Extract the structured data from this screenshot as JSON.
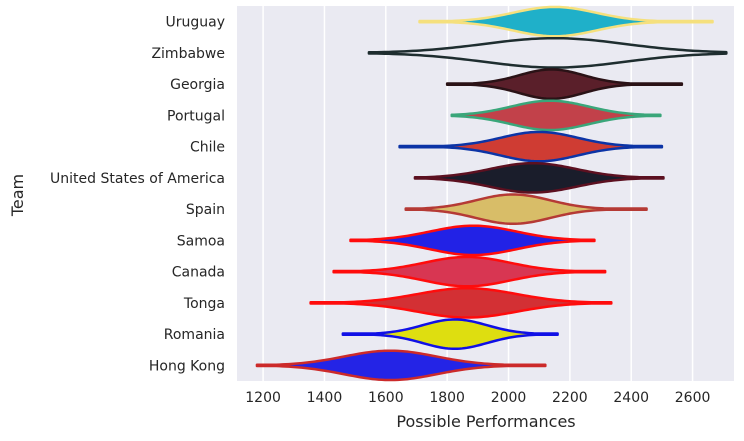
{
  "chart_data": {
    "type": "violin",
    "orientation": "horizontal",
    "xlabel": "Possible Performances",
    "ylabel": "Team",
    "xlim": [
      1115,
      2735
    ],
    "xticks": [
      1200,
      1400,
      1600,
      1800,
      2000,
      2200,
      2400,
      2600
    ],
    "grid": true,
    "background": "#eaeaf2",
    "series": [
      {
        "category": "Uruguay",
        "min": 1710,
        "max": 2665,
        "center": 2150,
        "spread": 135,
        "fill": "#1fb0c9",
        "edge": "#f5e07d"
      },
      {
        "category": "Zimbabwe",
        "min": 1545,
        "max": 2710,
        "center": 2150,
        "spread": 230,
        "fill": "#eaeaf2",
        "edge": "#1e2d2f"
      },
      {
        "category": "Georgia",
        "min": 1800,
        "max": 2565,
        "center": 2140,
        "spread": 105,
        "fill": "#5a1f2a",
        "edge": "#2a1216"
      },
      {
        "category": "Portugal",
        "min": 1815,
        "max": 2495,
        "center": 2135,
        "spread": 125,
        "fill": "#c2414a",
        "edge": "#3aa67a"
      },
      {
        "category": "Chile",
        "min": 1645,
        "max": 2500,
        "center": 2100,
        "spread": 125,
        "fill": "#cf3c33",
        "edge": "#0c34a6"
      },
      {
        "category": "United States of America",
        "min": 1695,
        "max": 2505,
        "center": 2080,
        "spread": 140,
        "fill": "#1a1d2b",
        "edge": "#5c1020"
      },
      {
        "category": "Spain",
        "min": 1665,
        "max": 2450,
        "center": 2015,
        "spread": 120,
        "fill": "#d8bd68",
        "edge": "#b53a35"
      },
      {
        "category": "Samoa",
        "min": 1485,
        "max": 2280,
        "center": 1885,
        "spread": 140,
        "fill": "#2222e6",
        "edge": "#ff0c0c"
      },
      {
        "category": "Canada",
        "min": 1430,
        "max": 2315,
        "center": 1865,
        "spread": 140,
        "fill": "#d83652",
        "edge": "#ff0c0c"
      },
      {
        "category": "Tonga",
        "min": 1355,
        "max": 2335,
        "center": 1865,
        "spread": 160,
        "fill": "#d33034",
        "edge": "#ff0c0c"
      },
      {
        "category": "Romania",
        "min": 1460,
        "max": 2160,
        "center": 1825,
        "spread": 105,
        "fill": "#dede10",
        "edge": "#1010e6"
      },
      {
        "category": "Hong Kong",
        "min": 1180,
        "max": 2120,
        "center": 1615,
        "spread": 150,
        "fill": "#2424e6",
        "edge": "#cc2a2a"
      }
    ]
  }
}
